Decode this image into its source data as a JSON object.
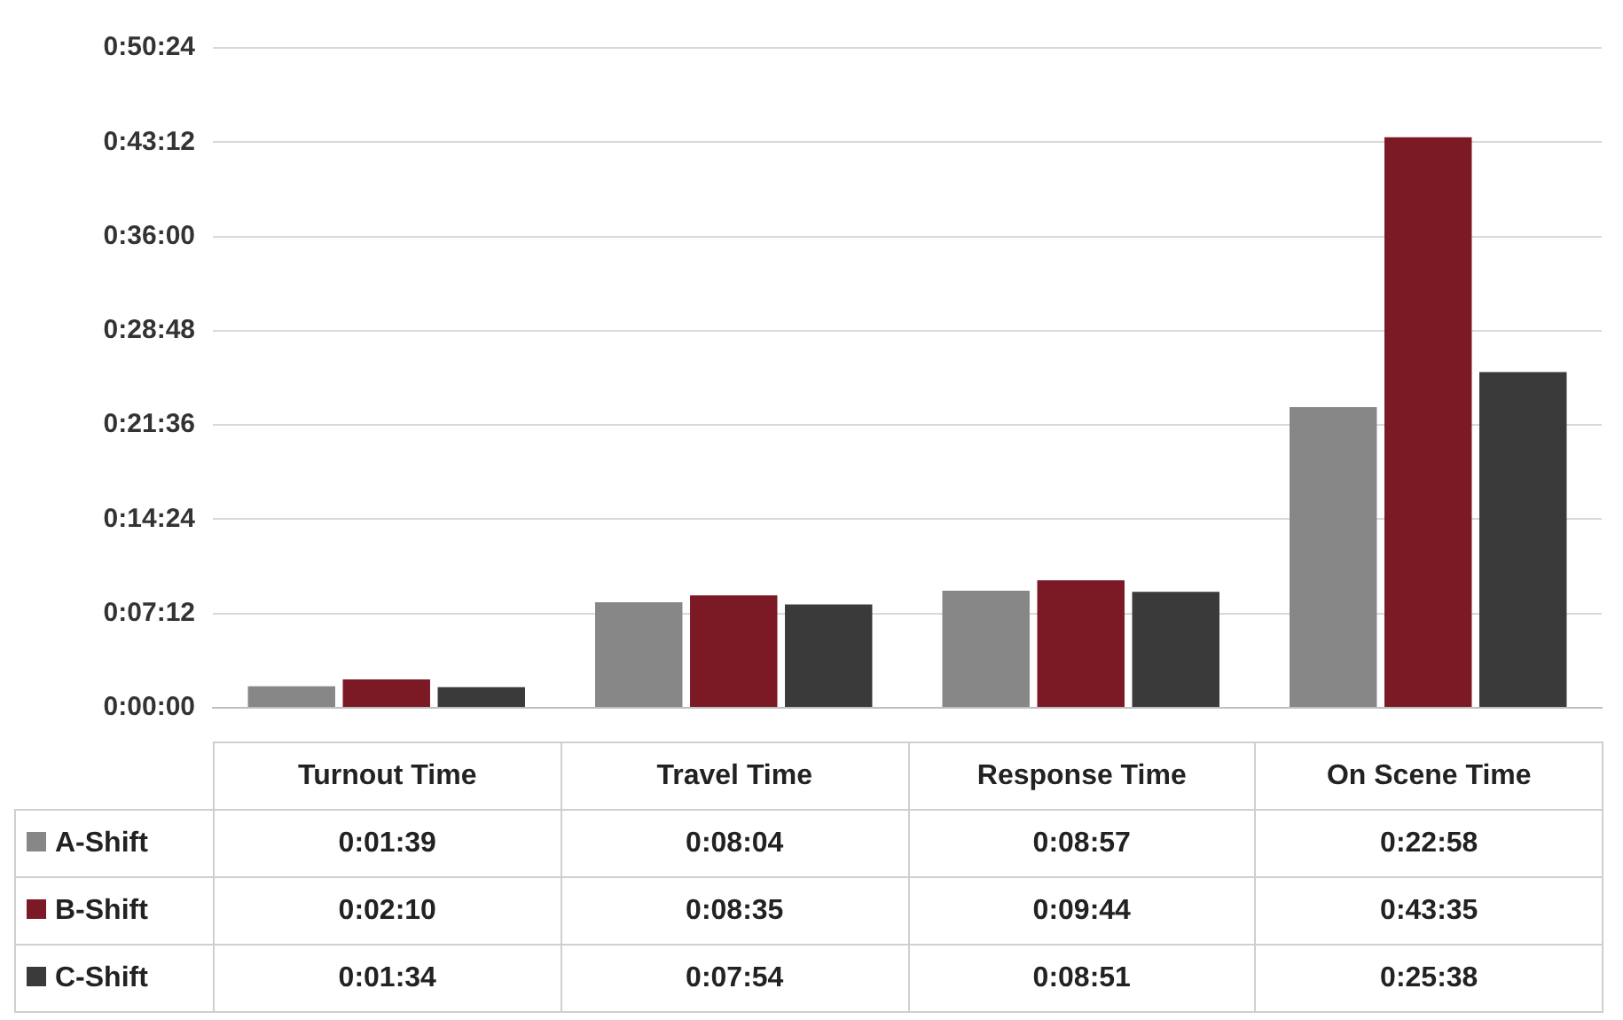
{
  "chart_data": {
    "type": "bar",
    "categories": [
      "Turnout Time",
      "Travel Time",
      "Response Time",
      "On Scene Time"
    ],
    "series": [
      {
        "name": "A-Shift",
        "color": "#878787",
        "values": [
          99,
          484,
          537,
          1378
        ],
        "value_labels": [
          "0:01:39",
          "0:08:04",
          "0:08:57",
          "0:22:58"
        ]
      },
      {
        "name": "B-Shift",
        "color": "#7b1a24",
        "values": [
          130,
          515,
          584,
          2615
        ],
        "value_labels": [
          "0:02:10",
          "0:08:35",
          "0:09:44",
          "0:43:35"
        ]
      },
      {
        "name": "C-Shift",
        "color": "#3a3a3a",
        "values": [
          94,
          474,
          531,
          1538
        ],
        "value_labels": [
          "0:01:34",
          "0:07:54",
          "0:08:51",
          "0:25:38"
        ]
      }
    ],
    "ylim": [
      0,
      3024
    ],
    "yticks": [
      {
        "value": 0,
        "label": "0:00:00"
      },
      {
        "value": 432,
        "label": "0:07:12"
      },
      {
        "value": 864,
        "label": "0:14:24"
      },
      {
        "value": 1296,
        "label": "0:21:36"
      },
      {
        "value": 1728,
        "label": "0:28:48"
      },
      {
        "value": 2160,
        "label": "0:36:00"
      },
      {
        "value": 2592,
        "label": "0:43:12"
      },
      {
        "value": 3024,
        "label": "0:50:24"
      }
    ],
    "grid": "y",
    "legend": "bottom left"
  }
}
